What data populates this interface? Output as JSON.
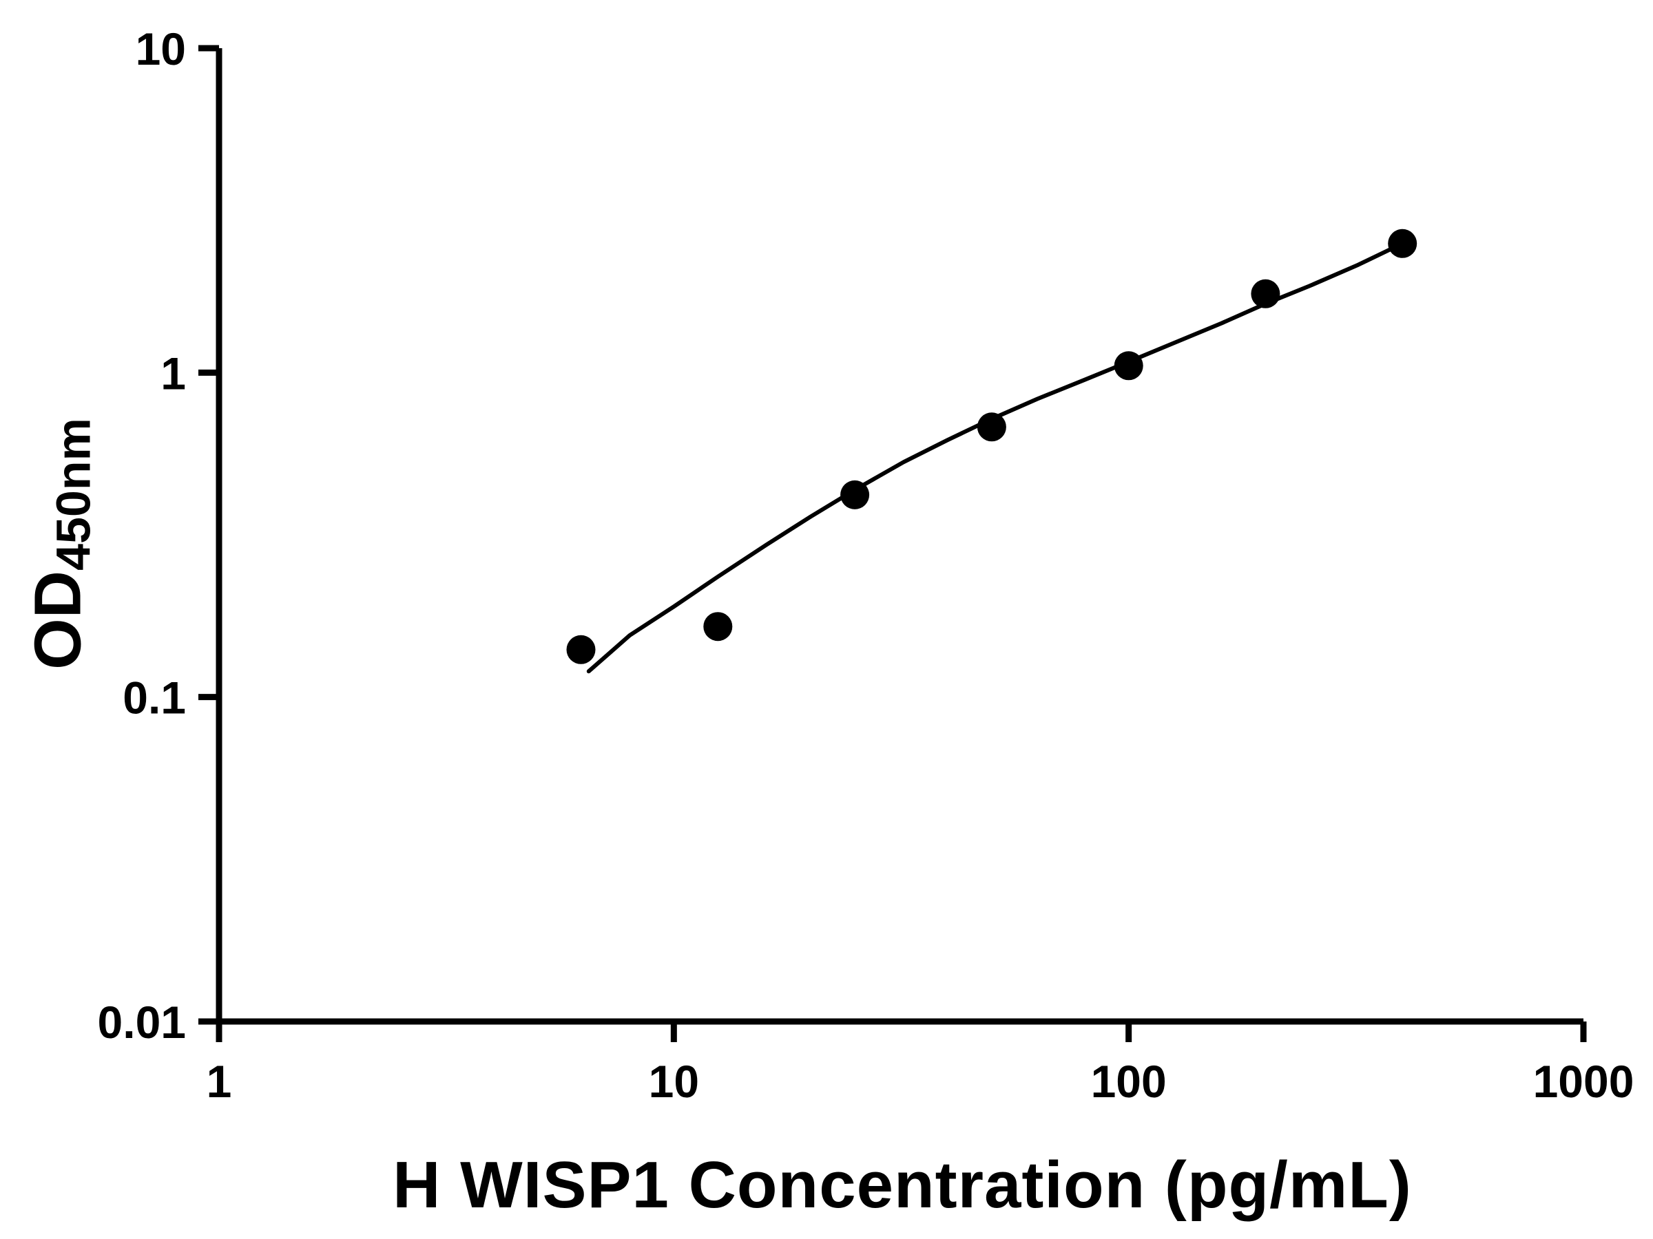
{
  "page": {
    "background_color": "#ffffff",
    "foreground_color": "#000000"
  },
  "chart_data": {
    "type": "scatter",
    "title": "",
    "xlabel": "H WISP1 Concentration (pg/mL)",
    "ylabel_main": "OD",
    "ylabel_sub": "450nm",
    "x_scale": "log",
    "y_scale": "log",
    "xlim": [
      1,
      1000
    ],
    "ylim": [
      0.01,
      10
    ],
    "grid": false,
    "legend": "none",
    "axis_color": "#000000",
    "x_ticks": [
      {
        "value": 1,
        "label": "1"
      },
      {
        "value": 10,
        "label": "10"
      },
      {
        "value": 100,
        "label": "100"
      },
      {
        "value": 1000,
        "label": "1000"
      }
    ],
    "y_ticks": [
      {
        "value": 0.01,
        "label": "0.01"
      },
      {
        "value": 0.1,
        "label": "0.1"
      },
      {
        "value": 1,
        "label": "1"
      },
      {
        "value": 10,
        "label": "10"
      }
    ],
    "series": [
      {
        "name": "H WISP1 standard points",
        "type": "scatter",
        "marker": "filled-circle",
        "color": "#000000",
        "points": [
          [
            6.25,
            0.14
          ],
          [
            12.5,
            0.165
          ],
          [
            25,
            0.42
          ],
          [
            50,
            0.68
          ],
          [
            100,
            1.05
          ],
          [
            200,
            1.75
          ],
          [
            400,
            2.5
          ]
        ]
      },
      {
        "name": "fit curve",
        "type": "line",
        "color": "#000000",
        "points": [
          [
            6.5,
            0.12
          ],
          [
            8,
            0.155
          ],
          [
            10,
            0.19
          ],
          [
            12.5,
            0.235
          ],
          [
            16,
            0.295
          ],
          [
            20,
            0.36
          ],
          [
            25,
            0.435
          ],
          [
            32,
            0.53
          ],
          [
            40,
            0.62
          ],
          [
            50,
            0.72
          ],
          [
            63,
            0.83
          ],
          [
            80,
            0.95
          ],
          [
            100,
            1.08
          ],
          [
            125,
            1.23
          ],
          [
            160,
            1.42
          ],
          [
            200,
            1.63
          ],
          [
            250,
            1.85
          ],
          [
            320,
            2.15
          ],
          [
            400,
            2.5
          ]
        ]
      }
    ]
  }
}
